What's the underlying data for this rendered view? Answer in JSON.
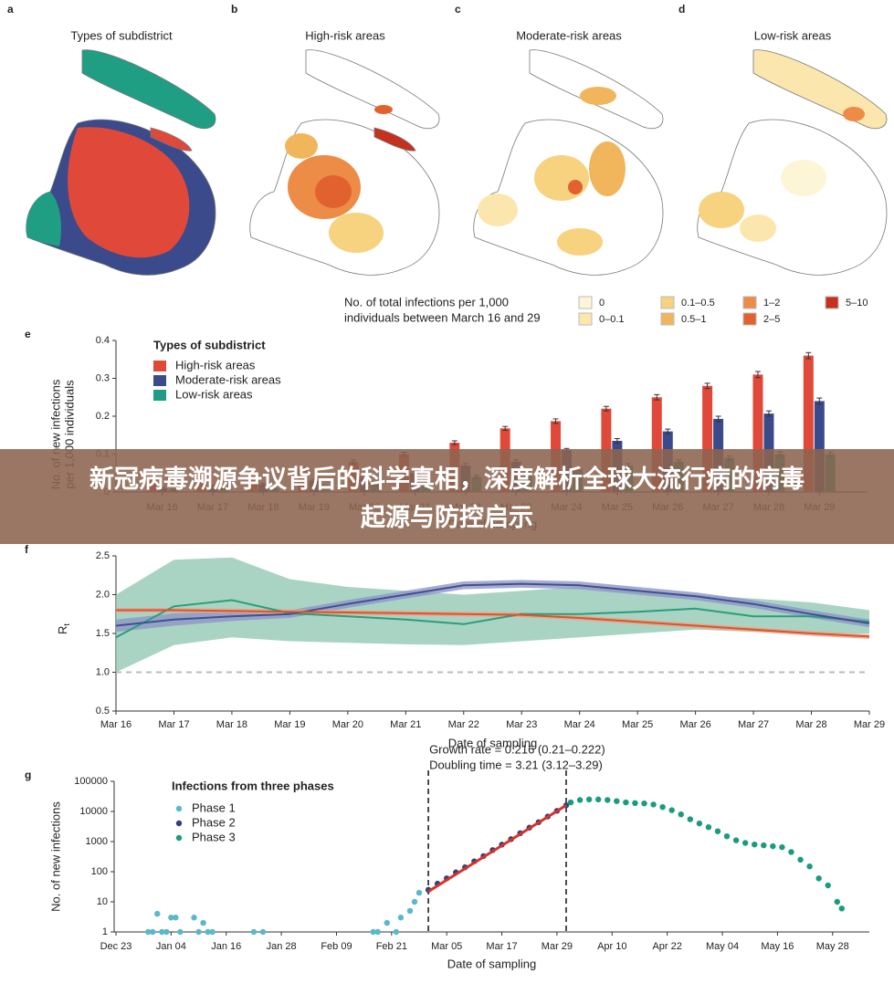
{
  "banner": {
    "title": "新冠病毒溯源争议背后的科学真相，深度解析全球大流行病的病毒起源与防控启示"
  },
  "maps": {
    "panels": [
      {
        "letter": "a",
        "title": "Types of subdistrict"
      },
      {
        "letter": "b",
        "title": "High-risk areas"
      },
      {
        "letter": "c",
        "title": "Moderate-risk areas"
      },
      {
        "letter": "d",
        "title": "Low-risk areas"
      }
    ],
    "legend": {
      "title": [
        "No. of total infections per 1,000",
        "individuals between March 16 and 29"
      ],
      "items": [
        {
          "label": "0",
          "color": "#fdf6d6"
        },
        {
          "label": "0–0.1",
          "color": "#fbe7ad"
        },
        {
          "label": "0.1–0.5",
          "color": "#f7d27f"
        },
        {
          "label": "0.5–1",
          "color": "#f1b65c"
        },
        {
          "label": "1–2",
          "color": "#ec8c46"
        },
        {
          "label": "2–5",
          "color": "#e2622f"
        },
        {
          "label": "5–10",
          "color": "#c6311f"
        }
      ]
    }
  },
  "chart_data": [
    {
      "type": "bar",
      "letter": "e",
      "ylabel": [
        "No. of new infections",
        "per 1,000 individuals"
      ],
      "xlabel": "Date of sampling",
      "legend_title": "Types of subdistrict",
      "legend": "upper left",
      "categories": [
        "Mar 16",
        "Mar 17",
        "Mar 18",
        "Mar 19",
        "Mar 20",
        "Mar 21",
        "Mar 22",
        "Mar 23",
        "Mar 24",
        "Mar 25",
        "Mar 26",
        "Mar 27",
        "Mar 28",
        "Mar 29"
      ],
      "ylim": [
        0,
        0.4
      ],
      "yticks": [
        0,
        0.1,
        0.2,
        0.3,
        0.4
      ],
      "series": [
        {
          "name": "High-risk areas",
          "color": "#e0493a",
          "values": [
            0.03,
            0.04,
            0.05,
            0.06,
            0.08,
            0.1,
            0.13,
            0.168,
            0.187,
            0.22,
            0.25,
            0.28,
            0.31,
            0.36
          ],
          "errors": [
            0.004,
            0.004,
            0.004,
            0.004,
            0.005,
            0.005,
            0.005,
            0.005,
            0.006,
            0.006,
            0.007,
            0.007,
            0.008,
            0.008
          ]
        },
        {
          "name": "Moderate-risk areas",
          "color": "#3b4a8a",
          "values": [
            0.01,
            0.015,
            0.02,
            0.03,
            0.04,
            0.05,
            0.07,
            0.08,
            0.11,
            0.135,
            0.16,
            0.193,
            0.207,
            0.24
          ],
          "errors": [
            0.003,
            0.003,
            0.003,
            0.004,
            0.004,
            0.004,
            0.005,
            0.005,
            0.005,
            0.006,
            0.006,
            0.007,
            0.007,
            0.008
          ]
        },
        {
          "name": "Low-risk areas",
          "color": "#1f9e83",
          "values": [
            0.005,
            0.01,
            0.01,
            0.015,
            0.02,
            0.03,
            0.04,
            0.05,
            0.06,
            0.07,
            0.08,
            0.09,
            0.1,
            0.1
          ],
          "errors": [
            0.002,
            0.002,
            0.002,
            0.003,
            0.003,
            0.003,
            0.004,
            0.004,
            0.004,
            0.005,
            0.005,
            0.005,
            0.006,
            0.006
          ]
        }
      ]
    },
    {
      "type": "line",
      "letter": "f",
      "ylabel": "R",
      "ylabel_sub": "t",
      "xlabel": "Date of sampling",
      "categories": [
        "Mar 16",
        "Mar 17",
        "Mar 18",
        "Mar 19",
        "Mar 20",
        "Mar 21",
        "Mar 22",
        "Mar 23",
        "Mar 24",
        "Mar 25",
        "Mar 26",
        "Mar 27",
        "Mar 28",
        "Mar 29"
      ],
      "ylim": [
        0.5,
        2.5
      ],
      "yticks": [
        0.5,
        {
          "value": 1.0,
          "label": "1.0"
        },
        1.5,
        {
          "value": 2.0,
          "label": "2.0"
        },
        2.5
      ],
      "hline": 1.0,
      "series": [
        {
          "color": "#2a9d7c",
          "band_color": "#8cc5b0",
          "values": [
            1.45,
            1.85,
            1.93,
            1.76,
            1.72,
            1.68,
            1.62,
            1.75,
            1.75,
            1.78,
            1.82,
            1.72,
            1.72,
            1.65
          ],
          "lower": [
            1.0,
            1.35,
            1.45,
            1.4,
            1.38,
            1.36,
            1.35,
            1.4,
            1.45,
            1.5,
            1.55,
            1.52,
            1.5,
            1.5
          ],
          "upper": [
            2.0,
            2.45,
            2.48,
            2.2,
            2.1,
            2.05,
            2.0,
            2.05,
            2.1,
            2.05,
            2.0,
            1.95,
            1.9,
            1.8
          ]
        },
        {
          "color": "#3f4f93",
          "band_color": "#8f96c6",
          "values": [
            1.6,
            1.68,
            1.72,
            1.75,
            1.88,
            2.0,
            2.12,
            2.14,
            2.12,
            2.05,
            1.98,
            1.88,
            1.75,
            1.63
          ],
          "lower": [
            1.52,
            1.6,
            1.66,
            1.7,
            1.83,
            1.95,
            2.07,
            2.09,
            2.07,
            2.0,
            1.93,
            1.83,
            1.7,
            1.58
          ],
          "upper": [
            1.68,
            1.76,
            1.78,
            1.8,
            1.93,
            2.05,
            2.17,
            2.19,
            2.17,
            2.1,
            2.03,
            1.93,
            1.8,
            1.68
          ]
        },
        {
          "color": "#d9542f",
          "band_color": "#eba086",
          "values": [
            1.8,
            1.8,
            1.79,
            1.78,
            1.77,
            1.76,
            1.75,
            1.74,
            1.7,
            1.65,
            1.6,
            1.55,
            1.5,
            1.46
          ],
          "lower": [
            1.77,
            1.77,
            1.76,
            1.75,
            1.74,
            1.73,
            1.72,
            1.71,
            1.67,
            1.62,
            1.57,
            1.52,
            1.47,
            1.43
          ],
          "upper": [
            1.83,
            1.83,
            1.82,
            1.81,
            1.8,
            1.79,
            1.78,
            1.77,
            1.73,
            1.68,
            1.63,
            1.58,
            1.53,
            1.49
          ]
        }
      ]
    },
    {
      "type": "scatter",
      "letter": "g",
      "ylabel": "No. of new infections",
      "xlabel": "Date of sampling",
      "legend_title": "Infections from three phases",
      "legend": "upper left",
      "log_y": true,
      "ylim": [
        1,
        100000
      ],
      "yticks": [
        1,
        10,
        100,
        1000,
        10000,
        100000
      ],
      "xlim": [
        "Dec 23",
        "Jun 05"
      ],
      "xticks": [
        "Dec 23",
        "Jan 04",
        "Jan 16",
        "Jan 28",
        "Feb 09",
        "Feb 21",
        "Mar 05",
        "Mar 17",
        "Mar 29",
        "Apr 10",
        "Apr 22",
        "May 04",
        "May 16",
        "May 28"
      ],
      "annotations": [
        "Growth rate = 0.216 (0.21–0.222)",
        "Doubling time = 3.21 (3.12–3.29)"
      ],
      "vlines": [
        "Mar 01",
        "Mar 31"
      ],
      "fit": {
        "color": "#d6332a",
        "x": [
          "Mar 01",
          "Mar 31"
        ],
        "values": [
          22,
          16000
        ]
      },
      "series": [
        {
          "name": "Phase 1",
          "color": "#5bb8c9",
          "x": [
            "Dec 30",
            "Dec 31",
            "Jan 01",
            "Jan 02",
            "Jan 03",
            "Jan 04",
            "Jan 05",
            "Jan 06",
            "Jan 09",
            "Jan 10",
            "Jan 11",
            "Jan 12",
            "Jan 13",
            "Jan 22",
            "Jan 24",
            "Feb 17",
            "Feb 18",
            "Feb 20",
            "Feb 22",
            "Feb 23",
            "Feb 25",
            "Feb 26",
            "Feb 27"
          ],
          "values": [
            1,
            1,
            4,
            1,
            1,
            3,
            3,
            1,
            3,
            1,
            2,
            1,
            1,
            1,
            1,
            1,
            1,
            2,
            1,
            3,
            5,
            10,
            20
          ]
        },
        {
          "name": "Phase 2",
          "color": "#34407e",
          "x": [
            "Mar 01",
            "Mar 03",
            "Mar 05",
            "Mar 07",
            "Mar 09",
            "Mar 11",
            "Mar 13",
            "Mar 15",
            "Mar 17",
            "Mar 19",
            "Mar 21",
            "Mar 23",
            "Mar 25",
            "Mar 27",
            "Mar 29",
            "Mar 31"
          ],
          "values": [
            25,
            40,
            60,
            95,
            140,
            220,
            330,
            520,
            790,
            1200,
            1900,
            2900,
            4400,
            6800,
            10500,
            16000
          ]
        },
        {
          "name": "Phase 3",
          "color": "#1a9b7f",
          "x": [
            "Apr 01",
            "Apr 03",
            "Apr 05",
            "Apr 07",
            "Apr 09",
            "Apr 11",
            "Apr 13",
            "Apr 15",
            "Apr 17",
            "Apr 19",
            "Apr 21",
            "Apr 23",
            "Apr 25",
            "Apr 27",
            "Apr 29",
            "May 01",
            "May 03",
            "May 05",
            "May 07",
            "May 09",
            "May 11",
            "May 13",
            "May 15",
            "May 17",
            "May 19",
            "May 21",
            "May 23",
            "May 25",
            "May 27",
            "May 29",
            "May 30"
          ],
          "values": [
            20000,
            24000,
            25000,
            25000,
            24000,
            22000,
            20000,
            19000,
            18500,
            17000,
            14000,
            11000,
            8000,
            5500,
            4000,
            3000,
            2200,
            1500,
            1100,
            900,
            800,
            750,
            700,
            650,
            450,
            250,
            150,
            60,
            35,
            10,
            6
          ]
        }
      ]
    }
  ]
}
